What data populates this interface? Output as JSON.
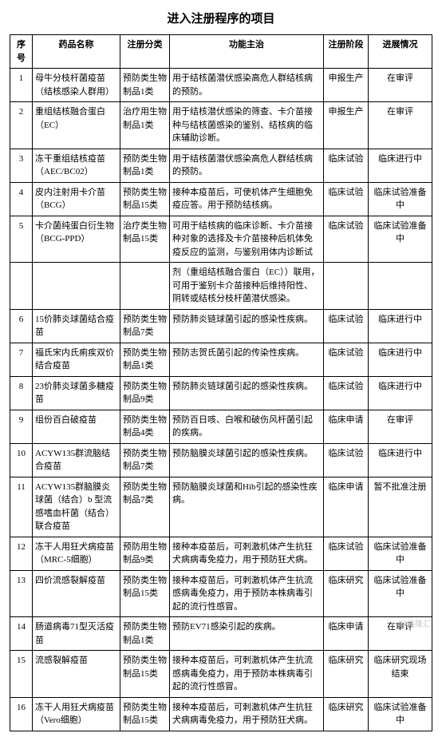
{
  "title": "进入注册程序的项目",
  "headers": {
    "seq": "序号",
    "name": "药品名称",
    "cat": "注册分类",
    "func": "功能主治",
    "phase": "注册阶段",
    "prog": "进展情况"
  },
  "rows": [
    {
      "seq": "1",
      "name": "母牛分枝杆菌疫苗（结核感染人群用）",
      "cat": "预防类生物制品1类",
      "func": "用于结核菌潜伏感染高危人群结核病的预防。",
      "phase": "申报生产",
      "prog": "在审评"
    },
    {
      "seq": "2",
      "name": "重组结核融合蛋白（EC）",
      "cat": "治疗用生物制品1类",
      "func": "用于结核潜伏感染的筛查、卡介苗接种与结核菌感染的鉴别、结核病的临床辅助诊断。",
      "phase": "申报生产",
      "prog": "在审评"
    },
    {
      "seq": "3",
      "name": "冻干重组结核疫苗（AEC/BC02）",
      "cat": "预防类生物制品1类",
      "func": "用于结核菌潜伏感染高危人群结核病的预防。",
      "phase": "临床试验",
      "prog": "临床进行中"
    },
    {
      "seq": "4",
      "name": "皮内注射用卡介苗（BCG）",
      "cat": "预防类生物制品15类",
      "func": "接种本疫苗后，可使机体产生细胞免疫应答。用于预防结核病。",
      "phase": "临床试验",
      "prog": "临床试验准备中"
    },
    {
      "seq": "5",
      "name": "卡介菌纯蛋白衍生物（BCG-PPD）",
      "cat": "治疗类生物制品15类",
      "func": "可用于结核病的临床诊断、卡介苗接种对象的选择及卡介苗接种后机体免疫反应的监测，与鉴别用体内诊断试",
      "phase": "临床试验",
      "prog": "临床试验准备中"
    },
    {
      "seq": "",
      "name": "",
      "cat": "",
      "func": "剂（重组结核融合蛋白（EC））联用，可用于鉴别卡介苗接种后维持阳性、阴转或结核分枝杆菌潜伏感染。",
      "phase": "",
      "prog": ""
    },
    {
      "seq": "6",
      "name": "15价肺炎球菌结合疫苗",
      "cat": "预防类生物制品7类",
      "func": "预防肺炎链球菌引起的感染性疾病。",
      "phase": "临床试验",
      "prog": "临床进行中"
    },
    {
      "seq": "7",
      "name": "福氏宋内氏痢疾双价结合疫苗",
      "cat": "预防类生物制品1类",
      "func": "预防志贺氏菌引起的传染性疾病。",
      "phase": "临床试验",
      "prog": "临床进行中"
    },
    {
      "seq": "8",
      "name": "23价肺炎球菌多糖疫苗",
      "cat": "预防类生物制品9类",
      "func": "预防肺炎链球菌引起的感染性疾病。",
      "phase": "临床试验",
      "prog": "临床进行中"
    },
    {
      "seq": "9",
      "name": "组份百白破疫苗",
      "cat": "预防类生物制品4类",
      "func": "预防百日咳、白喉和破伤风杆菌引起的疾病。",
      "phase": "临床申请",
      "prog": "在审评"
    },
    {
      "seq": "10",
      "name": "ACYW135群流脑结合疫苗",
      "cat": "预防类生物制品7类",
      "func": "预防脑膜炎球菌引起的感染性疾病。",
      "phase": "临床试验",
      "prog": "临床进行中"
    },
    {
      "seq": "11",
      "name": "ACYW135群脑膜炎球菌（结合）b 型流感嗜血杆菌（结合）联合疫苗",
      "cat": "预防类生物制品7类",
      "func": "预防脑膜炎球菌和Hib引起的感染性疾病。",
      "phase": "临床申请",
      "prog": "暂不批准注册"
    },
    {
      "seq": "12",
      "name": "冻干人用狂犬病疫苗（MRC-5细胞）",
      "cat": "预防用生物制品9类",
      "func": "接种本疫苗后，可刺激机体产生抗狂犬病病毒免疫力，用于预防狂犬病。",
      "phase": "临床试验",
      "prog": "临床试验准备中"
    },
    {
      "seq": "13",
      "name": "四价流感裂解疫苗",
      "cat": "预防类生物制品15类",
      "func": "接种本疫苗后，可刺激机体产生抗流感病毒免疫力，用于预防本株病毒引起的流行性感冒。",
      "phase": "临床研究",
      "prog": "临床试验准备中"
    },
    {
      "seq": "14",
      "name": "肠道病毒71型灭活疫苗",
      "cat": "预防类生物制品1类",
      "func": "预防EV71感染引起的疾病。",
      "phase": "临床申请",
      "prog": "在审评"
    },
    {
      "seq": "15",
      "name": "流感裂解疫苗",
      "cat": "预防类生物制品15类",
      "func": "接种本疫苗后，可刺激机体产生抗流感病毒免疫力，用于预防本株病毒引起的流行性感冒。",
      "phase": "临床研究",
      "prog": "临床研究现场结束"
    },
    {
      "seq": "16",
      "name": "冻干人用狂犬病疫苗（Vero细胞）",
      "cat": "预防类生物制品15类",
      "func": "接种本疫苗后，可刺激机体产生抗狂犬病病毒免疫力，用于预防狂犬病。",
      "phase": "临床研究",
      "prog": "临床试验准备中"
    }
  ],
  "watermark": "@格隆汇"
}
